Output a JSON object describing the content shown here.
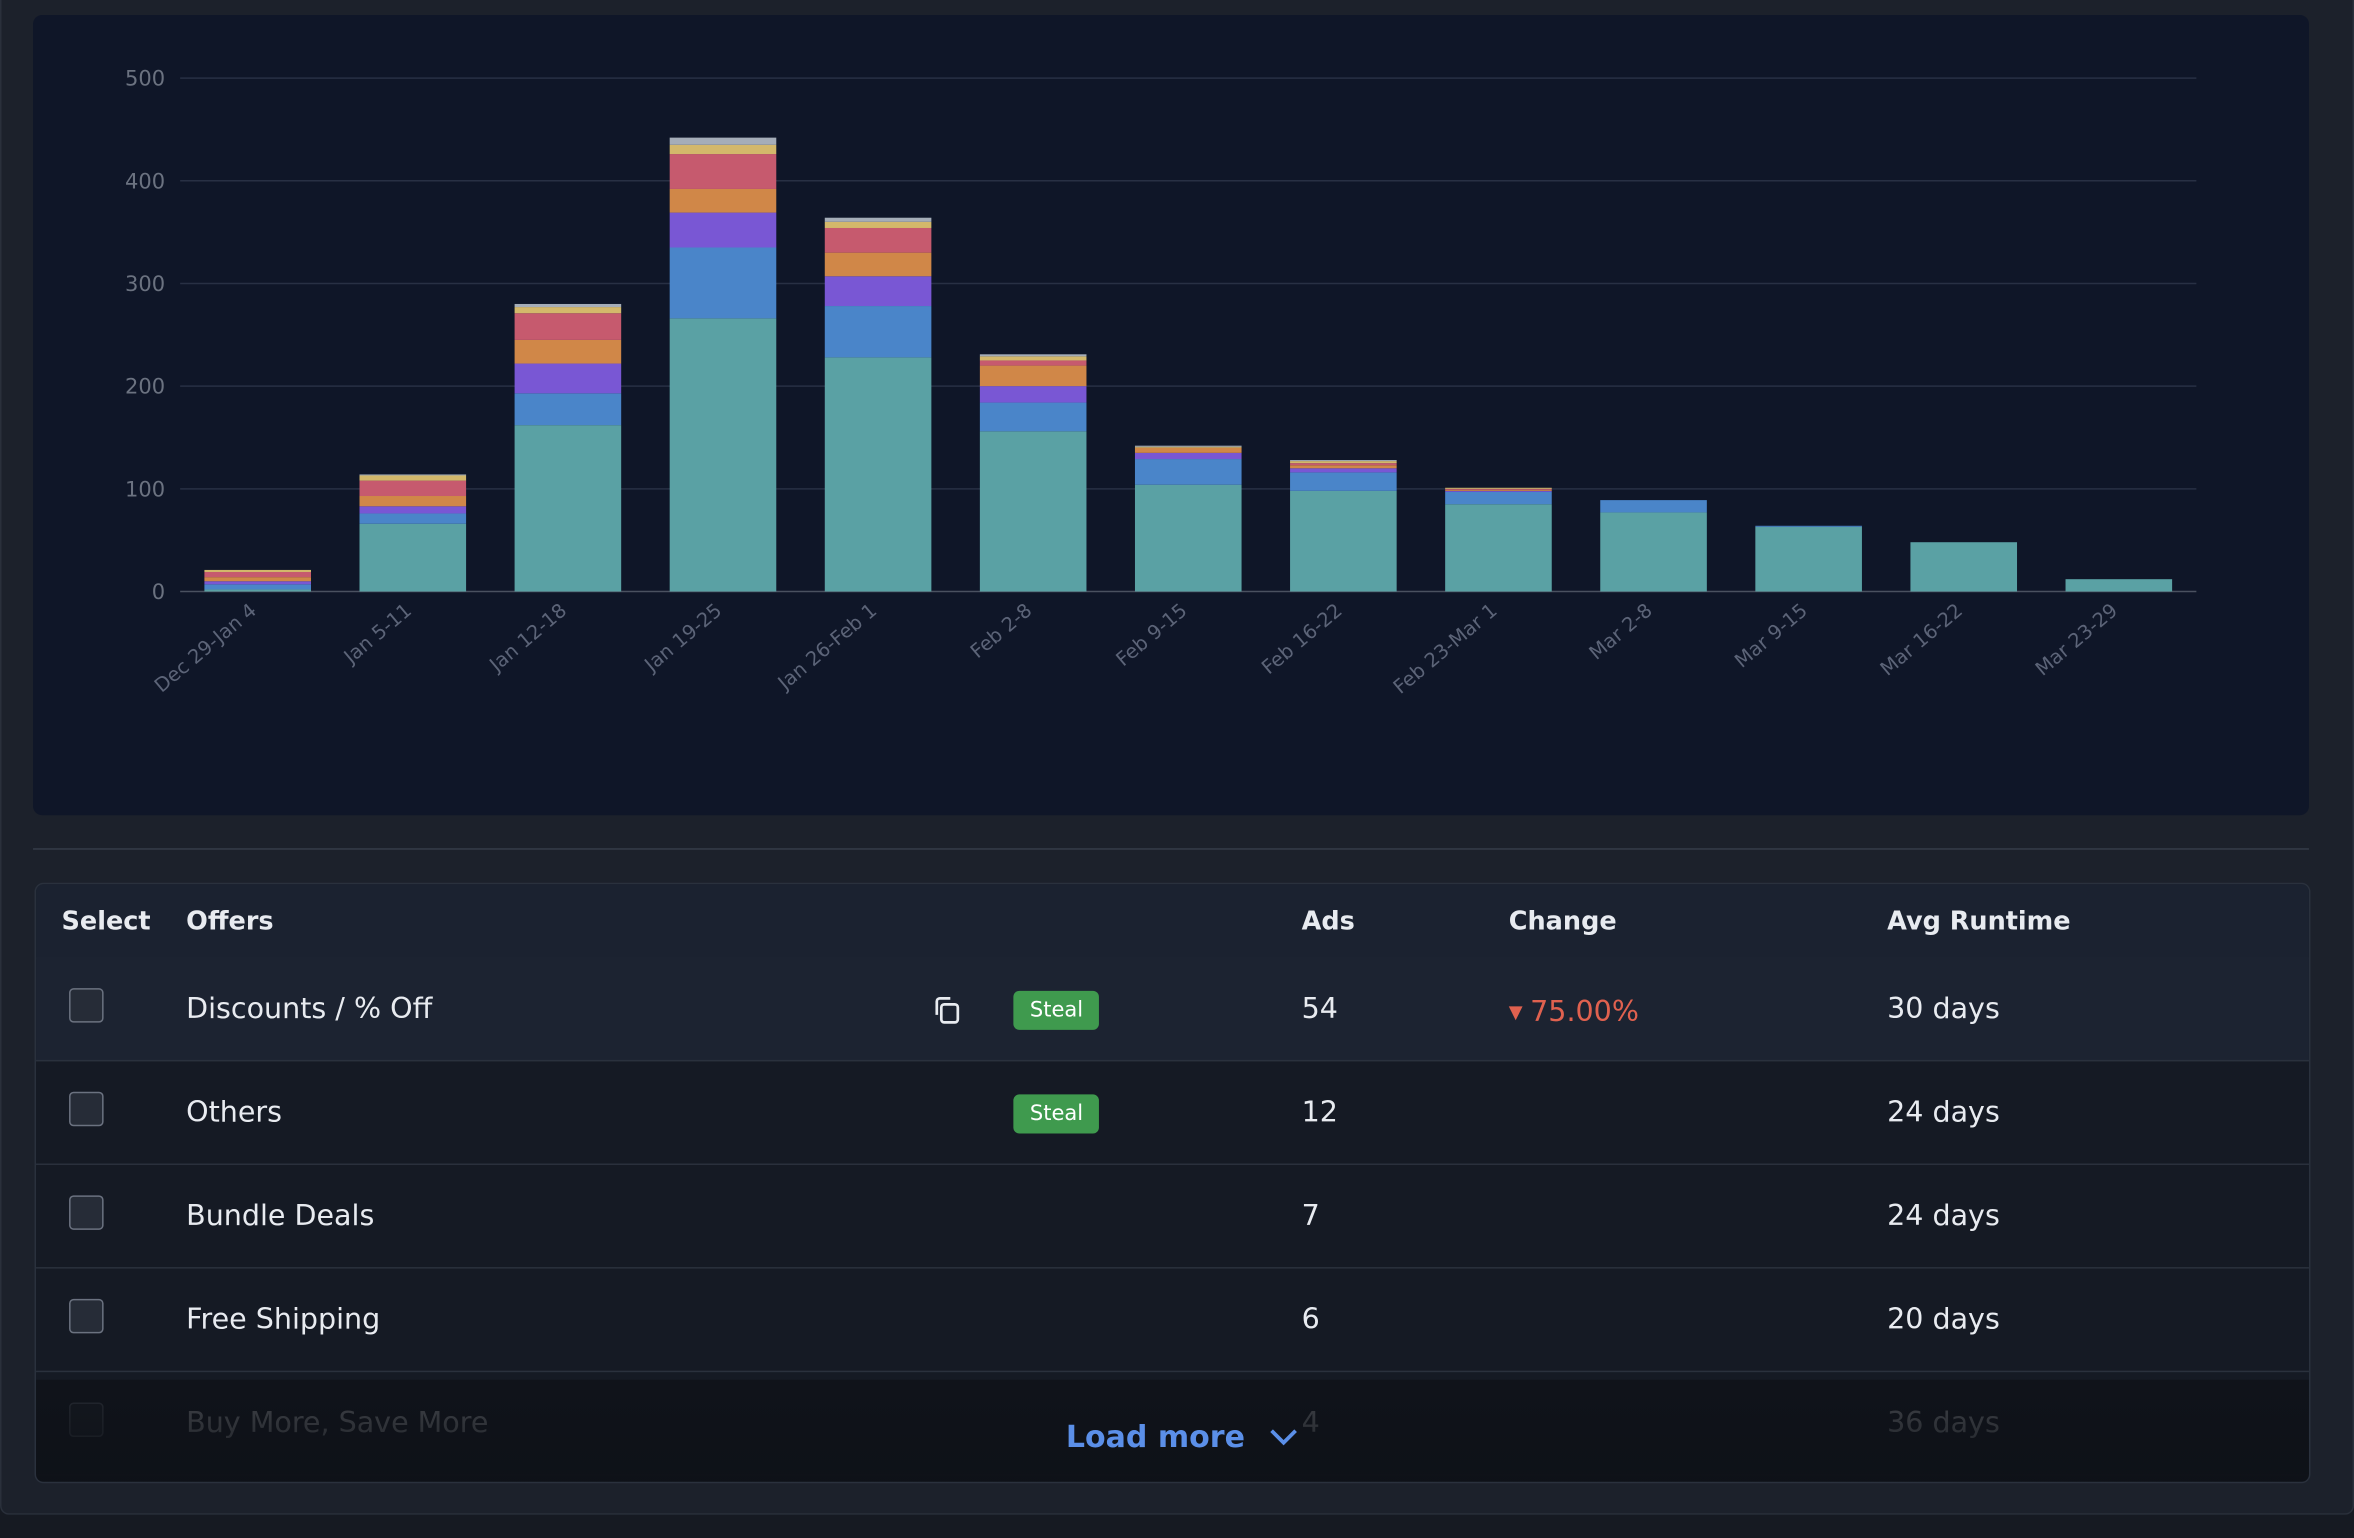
{
  "chart_data": {
    "type": "stacked_bar",
    "categories": [
      "Dec 29-Jan 4",
      "Jan 5-11",
      "Jan 12-18",
      "Jan 19-25",
      "Jan 26-Feb 1",
      "Feb 2-8",
      "Feb 9-15",
      "Feb 16-22",
      "Feb 23-Mar 1",
      "Mar 2-8",
      "Mar 9-15",
      "Mar 16-22",
      "Mar 23-29"
    ],
    "series": [
      {
        "color": "#5aa1a4",
        "values": [
          2,
          66,
          162,
          266,
          228,
          156,
          104,
          98,
          85,
          77,
          63,
          48,
          12
        ]
      },
      {
        "color": "#4a85c9",
        "values": [
          5,
          10,
          31,
          69,
          50,
          28,
          25,
          18,
          12,
          12,
          1,
          0,
          0
        ]
      },
      {
        "color": "#7957d4",
        "values": [
          3,
          7,
          29,
          34,
          29,
          16,
          6,
          4,
          1,
          0,
          0,
          0,
          0
        ]
      },
      {
        "color": "#d08748",
        "values": [
          4,
          10,
          23,
          23,
          23,
          20,
          5,
          3,
          1,
          0,
          0,
          0,
          0
        ]
      },
      {
        "color": "#c65a6e",
        "values": [
          5,
          15,
          26,
          34,
          24,
          5,
          0,
          2,
          1,
          0,
          0,
          0,
          0
        ]
      },
      {
        "color": "#d3b86b",
        "values": [
          2,
          5,
          6,
          9,
          6,
          4,
          1,
          2,
          1,
          0,
          0,
          0,
          0
        ]
      },
      {
        "color": "#a5adb8",
        "values": [
          0,
          1,
          3,
          7,
          4,
          2,
          1,
          1,
          0,
          0,
          0,
          0,
          0
        ]
      }
    ],
    "ylim": [
      0,
      500
    ],
    "yticks": [
      0,
      100,
      200,
      300,
      400,
      500
    ],
    "grid": true
  },
  "table": {
    "columns": [
      "Select",
      "Offers",
      "Ads",
      "Change",
      "Avg Runtime"
    ],
    "rows": [
      {
        "offer": "Discounts / % Off",
        "badge": "Steal",
        "ads": 54,
        "change": "75.00%",
        "runtime": "30 days"
      },
      {
        "offer": "Others",
        "badge": "Steal",
        "ads": 12,
        "runtime": "24 days"
      },
      {
        "offer": "Bundle Deals",
        "ads": 7,
        "runtime": "24 days"
      },
      {
        "offer": "Free Shipping",
        "ads": 6,
        "runtime": "20 days"
      },
      {
        "offer": "Buy More, Save More",
        "ads": 4,
        "runtime": "36 days"
      }
    ],
    "load_more": "Load more"
  }
}
